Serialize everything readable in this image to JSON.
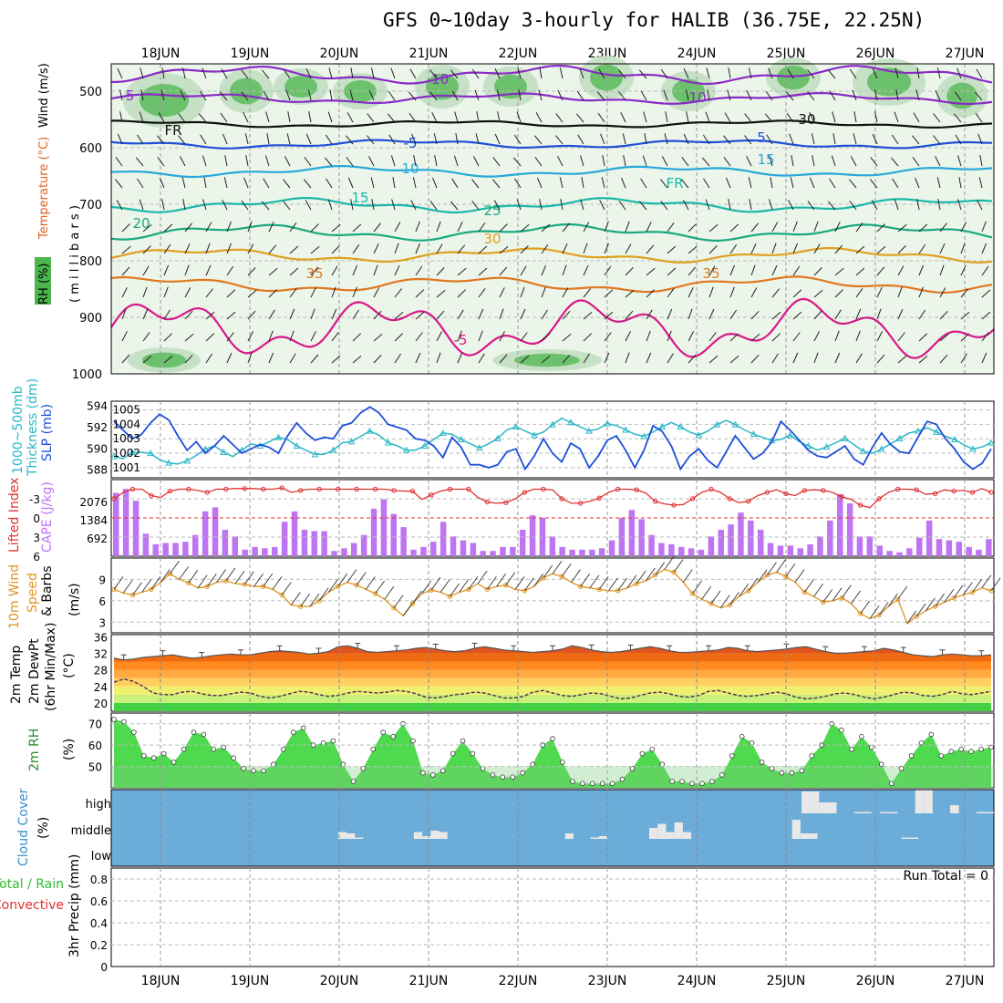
{
  "title": "GFS 0~10day 3-hourly for HALIB (36.75E, 22.25N)",
  "dates": [
    "18JUN",
    "19JUN",
    "20JUN",
    "21JUN",
    "22JUN",
    "23JUN",
    "24JUN",
    "25JUN",
    "26JUN",
    "27JUN"
  ],
  "run_total": "Run Total = 0",
  "colors": {
    "temperature_label": "#e0601f",
    "rh_fill": "#4db54d",
    "sounding_bg": "#ffffff",
    "slp_line": "#1f4fd8",
    "thickness_line": "#28b7c8",
    "cape_bar": "#bf74f2",
    "lifted_index": "#e03030",
    "wind_speed": "#e0941f",
    "t2m_top": "#e0541f",
    "t2m_bottom": "#ff8c1a",
    "rh2m_fill": "#4fd94f",
    "cloud_bg": "#6badd8",
    "cloud_fill": "#e8e8e8"
  },
  "panels": {
    "sounding": {
      "labels": [
        "RH (%)",
        "Temperature (°C)",
        "Wind (m/s)",
        "( m i l l i b a r s )"
      ],
      "yticks": [
        "500",
        "600",
        "700",
        "800",
        "900",
        "1000"
      ],
      "isotherm_labels": [
        "-10",
        "-5",
        "FR",
        "-5",
        "10",
        "15",
        "20",
        "25",
        "30",
        "35",
        "-5",
        "5",
        "10",
        "15",
        "FR",
        "30",
        "35"
      ]
    },
    "slp": {
      "labels": [
        "1000~500mb",
        "Thickness (dm)",
        "SLP (mb)"
      ],
      "left_ticks": [
        "594",
        "592",
        "590",
        "588"
      ],
      "right_ticks": [
        "1005",
        "1004",
        "1003",
        "1002",
        "1001"
      ]
    },
    "cape": {
      "labels": [
        "Lifted Index",
        "CAPE (J/kg)"
      ],
      "li_ticks": [
        "-3",
        "0",
        "3",
        "6"
      ],
      "cape_ticks": [
        "2076",
        "1384",
        "692"
      ]
    },
    "wind10m": {
      "labels": [
        "10m Wind",
        "Speed",
        "& Barbs",
        "(m/s)"
      ],
      "yticks": [
        "9",
        "6",
        "3"
      ]
    },
    "temp2m": {
      "labels": [
        "2m Temp",
        "2m DewPt",
        "(6hr Min/Max)",
        "(°C)"
      ],
      "yticks": [
        "36",
        "32",
        "28",
        "24",
        "20"
      ]
    },
    "rh2m": {
      "labels": [
        "2m RH",
        "(%)"
      ],
      "yticks": [
        "70",
        "60",
        "50"
      ]
    },
    "cloud": {
      "labels": [
        "Cloud Cover",
        "(%)"
      ],
      "ylabels": [
        "high",
        "middle",
        "low"
      ]
    },
    "precip": {
      "labels": [
        "Total / Rain",
        "Convective",
        "3hr Precip (mm)"
      ],
      "yticks": [
        "0.8",
        "0.6",
        "0.4",
        "0.2",
        "0"
      ]
    }
  },
  "chart_data": [
    {
      "type": "line",
      "title": "SLP (mb)",
      "x_unit": "3-hourly steps from 18JUN",
      "series": [
        {
          "name": "SLP (mb)",
          "values": [
            1004.2,
            1003.6,
            1003.0,
            1003.3,
            1004.1,
            1004.7,
            1004.3,
            1003.2,
            1002.2,
            1002.8,
            1002.0,
            1002.5,
            1003.2,
            1002.6,
            1002.0,
            1002.3,
            1002.6,
            1002.4,
            1002.0,
            1003.2,
            1004.1,
            1003.4,
            1002.9,
            1003.1,
            1003.0,
            1003.9,
            1004.1,
            1004.8,
            1005.2,
            1004.8,
            1004.0,
            1003.8,
            1003.6,
            1003.0,
            1002.9,
            1002.5,
            1001.7,
            1003.1,
            1002.4,
            1001.2,
            1001.2,
            1001.0,
            1001.2,
            1002.1,
            1002.3,
            1000.9,
            1001.8,
            1003.0,
            1002.0,
            1001.4,
            1002.7,
            1002.3,
            1001.0,
            1001.8,
            1002.9,
            1003.2,
            1002.2,
            1001.0,
            1002.2,
            1003.9,
            1003.5,
            1002.5,
            1000.9,
            1001.8,
            1002.3,
            1001.5,
            1001.0,
            1002.1,
            1003.2,
            1002.4,
            1001.6,
            1002.0,
            1002.8,
            1004.2,
            1003.6,
            1002.9,
            1002.2,
            1001.8,
            1001.7,
            1002.1,
            1002.5,
            1001.6,
            1001.2,
            1002.4,
            1003.4,
            1002.6,
            1002.1,
            1002.0,
            1003.1,
            1004.2,
            1004.0,
            1003.0,
            1002.3,
            1001.4,
            1000.9,
            1001.3,
            1002.3
          ]
        },
        {
          "name": "1000~500mb Thickness (dm)",
          "values": [
            589.2,
            589.0,
            589.6,
            589.6,
            589.5,
            588.9,
            588.6,
            588.5,
            588.8,
            589.3,
            589.9,
            590.2,
            589.6,
            589.2,
            589.8,
            590.4,
            590.2,
            590.6,
            591.0,
            590.8,
            590.2,
            589.8,
            589.4,
            589.4,
            589.8,
            590.5,
            590.6,
            591.1,
            591.6,
            591.2,
            590.5,
            590.2,
            589.8,
            589.8,
            590.2,
            590.8,
            591.4,
            591.3,
            590.8,
            590.4,
            590.0,
            590.4,
            590.9,
            591.7,
            592.0,
            591.6,
            591.2,
            591.5,
            592.2,
            592.8,
            592.4,
            592.0,
            591.6,
            591.8,
            592.3,
            592.1,
            591.7,
            591.3,
            591.1,
            591.5,
            592.0,
            592.4,
            592.0,
            591.5,
            591.2,
            591.6,
            592.2,
            592.6,
            592.2,
            591.7,
            591.3,
            591.0,
            590.7,
            590.8,
            591.2,
            590.6,
            590.2,
            589.8,
            590.1,
            590.5,
            590.9,
            590.3,
            589.7,
            589.5,
            589.9,
            590.4,
            590.9,
            591.4,
            591.6,
            591.9,
            591.5,
            591.1,
            590.8,
            590.3,
            589.9,
            590.1,
            590.5
          ]
        }
      ],
      "ylabel": "SLP (mb)",
      "ylim": [
        1000.3,
        1005.6
      ]
    },
    {
      "type": "bar",
      "title": "CAPE (J/kg)",
      "x_unit": "3-hourly steps from 18JUN",
      "values": [
        2400,
        2550,
        2100,
        850,
        450,
        500,
        500,
        550,
        800,
        1700,
        1850,
        1000,
        750,
        250,
        350,
        300,
        350,
        1300,
        1700,
        1000,
        950,
        950,
        200,
        300,
        500,
        800,
        1800,
        2150,
        1600,
        1100,
        250,
        350,
        550,
        1300,
        750,
        600,
        500,
        200,
        200,
        350,
        350,
        1000,
        1550,
        1450,
        750,
        350,
        250,
        250,
        250,
        300,
        600,
        1450,
        1750,
        1400,
        800,
        500,
        450,
        350,
        300,
        250,
        750,
        1000,
        1200,
        1650,
        1350,
        1000,
        500,
        400,
        400,
        300,
        450,
        750,
        1350,
        2350,
        2000,
        750,
        750,
        400,
        200,
        150,
        300,
        700,
        1350,
        650,
        600,
        550,
        350,
        250,
        650
      ]
    },
    {
      "type": "line",
      "title": "Lifted Index",
      "values": [
        -3.0,
        -4.0,
        -4.5,
        -4.5,
        -3.5,
        -3.2,
        -4.2,
        -4.5,
        -4.5,
        -4.3,
        -4.0,
        -4.5,
        -4.5,
        -4.6,
        -4.6,
        -4.6,
        -4.5,
        -4.5,
        -4.7,
        -4.0,
        -4.3,
        -4.5,
        -4.5,
        -4.5,
        -4.5,
        -4.5,
        -4.5,
        -4.5,
        -4.5,
        -4.5,
        -4.3,
        -4.2,
        -4.2,
        -2.9,
        -3.6,
        -4.2,
        -4.5,
        -4.5,
        -4.5,
        -3.2,
        -2.5,
        -2.3,
        -2.4,
        -3.0,
        -4.0,
        -4.5,
        -4.5,
        -4.4,
        -3.0,
        -2.3,
        -2.3,
        -2.6,
        -3.1,
        -4.0,
        -4.5,
        -4.5,
        -4.4,
        -3.9,
        -2.6,
        -2.2,
        -2.0,
        -2.1,
        -3.0,
        -4.0,
        -4.5,
        -4.0,
        -3.0,
        -2.4,
        -2.6,
        -3.5,
        -4.0,
        -4.4,
        -3.8,
        -3.5,
        -4.3,
        -4.4,
        -4.3,
        -4.0,
        -3.3,
        -2.9,
        -2.0,
        -1.6,
        -3.0,
        -4.0,
        -4.5,
        -4.5,
        -4.4,
        -3.7,
        -3.8,
        -4.4,
        -4.2,
        -4.3,
        -4.0,
        -4.6,
        -4.0
      ],
      "ylim": [
        6,
        -6
      ]
    },
    {
      "type": "line",
      "title": "10m Wind Speed (m/s)",
      "values": [
        7.6,
        7.1,
        6.8,
        7.2,
        7.6,
        8.6,
        9.8,
        9.0,
        8.5,
        7.8,
        8.0,
        8.6,
        8.8,
        8.4,
        8.3,
        8.0,
        8.0,
        7.6,
        6.8,
        5.4,
        5.2,
        5.2,
        6.0,
        7.2,
        8.0,
        8.6,
        8.2,
        7.6,
        7.0,
        6.2,
        5.0,
        3.9,
        5.6,
        7.0,
        7.5,
        7.2,
        6.6,
        7.2,
        7.6,
        8.4,
        7.6,
        8.0,
        8.2,
        7.6,
        7.4,
        8.0,
        9.2,
        9.8,
        9.4,
        8.6,
        8.0,
        7.8,
        7.6,
        7.4,
        7.4,
        7.8,
        8.4,
        8.8,
        9.6,
        10.4,
        10.0,
        8.6,
        7.0,
        6.2,
        5.6,
        5.0,
        5.4,
        6.6,
        7.4,
        8.6,
        9.6,
        10.0,
        9.4,
        8.6,
        7.2,
        6.6,
        5.8,
        6.0,
        6.4,
        5.6,
        4.2,
        3.5,
        4.0,
        5.2,
        6.2,
        2.8,
        3.8,
        4.6,
        5.2,
        5.8,
        6.4,
        6.8,
        7.2,
        7.8,
        7.4
      ]
    },
    {
      "type": "area",
      "title": "2m Temp / 2m DewPt (°C)",
      "series": [
        {
          "name": "2m Temp",
          "values": [
            30.8,
            30.4,
            30.6,
            31.0,
            31.2,
            31.4,
            31.6,
            31.2,
            30.8,
            31.0,
            31.4,
            31.6,
            31.8,
            31.6,
            31.6,
            32.0,
            32.4,
            32.6,
            32.4,
            32.2,
            31.8,
            32.0,
            32.4,
            33.6,
            33.8,
            33.2,
            32.4,
            32.2,
            32.4,
            32.6,
            32.8,
            33.2,
            33.4,
            33.0,
            32.6,
            32.4,
            32.6,
            33.2,
            33.6,
            33.2,
            32.8,
            32.6,
            32.4,
            32.2,
            32.4,
            32.6,
            33.0,
            33.8,
            33.4,
            32.8,
            32.4,
            32.2,
            32.4,
            32.8,
            33.2,
            33.6,
            33.2,
            32.6,
            32.2,
            32.2,
            32.4,
            32.6,
            32.8,
            33.4,
            33.2,
            32.6,
            32.4,
            32.6,
            32.8,
            33.0,
            33.4,
            33.6,
            33.0,
            32.4,
            32.0,
            32.0,
            32.2,
            32.4,
            32.6,
            33.2,
            32.8,
            32.2,
            31.6,
            31.4,
            31.2,
            31.6,
            31.8,
            31.6,
            31.4,
            31.4,
            31.6
          ]
        },
        {
          "name": "2m DewPt",
          "values": [
            25.0,
            25.8,
            25.2,
            24.0,
            22.4,
            22.0,
            22.0,
            22.6,
            22.8,
            22.2,
            21.8,
            21.8,
            22.2,
            22.6,
            22.4,
            21.6,
            21.2,
            21.6,
            22.2,
            22.8,
            22.6,
            22.0,
            21.6,
            21.8,
            22.4,
            22.8,
            22.6,
            22.4,
            22.6,
            23.0,
            22.8,
            22.2,
            21.4,
            21.2,
            21.6,
            22.0,
            22.2,
            22.6,
            22.4,
            21.8,
            21.2,
            21.2,
            21.6,
            22.6,
            23.0,
            22.4,
            21.8,
            21.6,
            22.0,
            22.4,
            22.2,
            21.6,
            21.0,
            21.2,
            21.8,
            22.4,
            22.6,
            22.2,
            21.6,
            21.4,
            21.8,
            22.8,
            23.0,
            22.4,
            21.8,
            21.6,
            21.8,
            22.2,
            22.6,
            22.2,
            21.4,
            21.0,
            21.2,
            21.6,
            22.2,
            22.4,
            22.0,
            21.4,
            21.0,
            21.4,
            22.0,
            22.6,
            22.4,
            21.8,
            21.6,
            22.0,
            22.8,
            22.2,
            22.0,
            22.4,
            22.8
          ]
        }
      ],
      "ylim": [
        18,
        36
      ]
    },
    {
      "type": "area",
      "title": "2m RH (%)",
      "values": [
        72,
        71,
        66,
        55,
        54,
        56,
        52,
        58,
        66,
        65,
        58,
        59,
        54,
        49,
        48,
        48,
        51,
        58,
        66,
        68,
        60,
        61,
        62,
        51,
        43,
        49,
        58,
        66,
        64,
        70,
        62,
        47,
        46,
        48,
        56,
        62,
        56,
        49,
        46,
        45,
        45,
        47,
        51,
        60,
        63,
        52,
        43,
        42,
        42,
        42,
        42,
        44,
        49,
        56,
        58,
        51,
        43,
        43,
        42,
        42,
        43,
        46,
        55,
        64,
        61,
        52,
        49,
        47,
        47,
        48,
        55,
        60,
        70,
        67,
        58,
        64,
        59,
        51,
        42,
        49,
        55,
        61,
        65,
        55,
        57,
        58,
        57,
        58,
        59
      ],
      "ylim": [
        40,
        75
      ]
    },
    {
      "type": "bar",
      "title": "Cloud Cover (%)",
      "series": [
        {
          "name": "high",
          "values": [
            0,
            0,
            0,
            0,
            0,
            0,
            0,
            0,
            0,
            0,
            0,
            0,
            0,
            0,
            0,
            0,
            0,
            0,
            0,
            0,
            0,
            0,
            0,
            0,
            0,
            0,
            0,
            0,
            0,
            0,
            0,
            0,
            0,
            0,
            0,
            0,
            0,
            0,
            0,
            0,
            0,
            0,
            0,
            0,
            0,
            0,
            0,
            0,
            0,
            0,
            0,
            0,
            0,
            0,
            0,
            0,
            0,
            0,
            0,
            0,
            0,
            0,
            0,
            0,
            0,
            0,
            0,
            0,
            0,
            0,
            0,
            0,
            0,
            0,
            0,
            0,
            0,
            0,
            0,
            80,
            80,
            40,
            40,
            0,
            0,
            5,
            5,
            0,
            5,
            5,
            0,
            0,
            85,
            85,
            0,
            0,
            30,
            0,
            0,
            5,
            5
          ]
        },
        {
          "name": "middle",
          "values": [
            0,
            0,
            0,
            0,
            0,
            0,
            0,
            0,
            0,
            0,
            0,
            0,
            0,
            0,
            0,
            0,
            0,
            0,
            0,
            0,
            0,
            0,
            0,
            0,
            0,
            0,
            0,
            25,
            20,
            5,
            0,
            0,
            0,
            0,
            0,
            0,
            25,
            10,
            30,
            25,
            0,
            0,
            0,
            0,
            0,
            0,
            0,
            0,
            0,
            0,
            0,
            0,
            0,
            0,
            20,
            0,
            0,
            5,
            10,
            0,
            0,
            0,
            0,
            0,
            40,
            55,
            25,
            60,
            25,
            0,
            0,
            0,
            0,
            0,
            0,
            0,
            0,
            0,
            0,
            0,
            0,
            70,
            20,
            20,
            0,
            0,
            0,
            0,
            0,
            0,
            0,
            0,
            0,
            0,
            5,
            5,
            0,
            0,
            0,
            0,
            0,
            0,
            0,
            0,
            0
          ]
        },
        {
          "name": "low",
          "values": []
        }
      ],
      "ylim": [
        0,
        100
      ]
    },
    {
      "type": "bar",
      "title": "3hr Precip (mm)",
      "values": [],
      "ylim": [
        0,
        0.9
      ]
    }
  ]
}
